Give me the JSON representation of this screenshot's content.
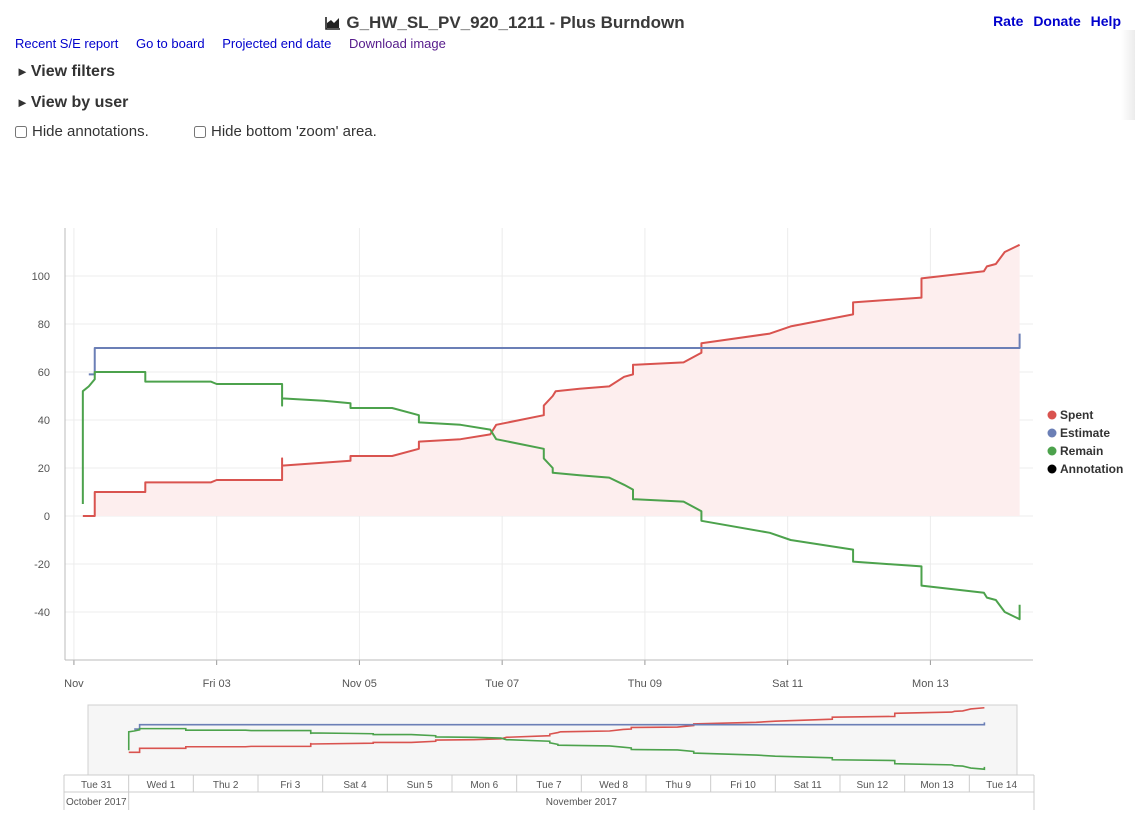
{
  "header": {
    "title": "G_HW_SL_PV_920_1211 - Plus Burndown",
    "chart_icon": "area-chart-icon"
  },
  "top_links": {
    "rate": "Rate",
    "donate": "Donate",
    "help": "Help"
  },
  "links": {
    "recent": "Recent S/E report",
    "board": "Go to board",
    "projected": "Projected end date",
    "download": "Download image"
  },
  "toggles": {
    "arrow": "►",
    "view_filters": "View filters",
    "view_by_user": "View by user"
  },
  "options": {
    "hide_annotations": "Hide annotations.",
    "hide_zoom": "Hide bottom 'zoom' area."
  },
  "colors": {
    "spent": "#d9534f",
    "estimate": "#6b7fb6",
    "remain": "#4ca24c",
    "annotation": "#000000",
    "spent_fill": "#fdeeee"
  },
  "chart_data": {
    "type": "line",
    "title": "",
    "xlabel": "",
    "ylabel": "",
    "ylim": [
      -60,
      120
    ],
    "xlim": [
      "2017-11-01T03:00",
      "2017-11-14T06:00"
    ],
    "y_ticks": [
      -40,
      -20,
      0,
      20,
      40,
      60,
      80,
      100
    ],
    "y_tick_labels": [
      "-40",
      "-20",
      "0",
      "20",
      "40",
      "60",
      "80",
      "100"
    ],
    "x_ticks": [
      "2017-11-01T00:00",
      "2017-11-03T00:00",
      "2017-11-05T00:00",
      "2017-11-07T00:00",
      "2017-11-09T00:00",
      "2017-11-11T00:00",
      "2017-11-13T00:00"
    ],
    "x_tick_labels": [
      "Nov",
      "Fri 03",
      "Nov 05",
      "Tue 07",
      "Thu 09",
      "Sat 11",
      "Mon 13"
    ],
    "legend": [
      "Spent",
      "Estimate",
      "Remain",
      "Annotation"
    ],
    "legend_position": "right",
    "grid": true,
    "series": [
      {
        "name": "Spent",
        "color": "#d9534f",
        "fill": true,
        "points": [
          [
            "2017-11-01T03:00",
            0
          ],
          [
            "2017-11-01T07:00",
            0
          ],
          [
            "2017-11-01T07:00",
            10
          ],
          [
            "2017-11-02T00:00",
            10
          ],
          [
            "2017-11-02T00:00",
            14
          ],
          [
            "2017-11-02T22:00",
            14
          ],
          [
            "2017-11-03T00:00",
            15
          ],
          [
            "2017-11-03T22:00",
            15
          ],
          [
            "2017-11-03T22:00",
            24
          ],
          [
            "2017-11-03T22:00",
            21
          ],
          [
            "2017-11-04T21:00",
            23
          ],
          [
            "2017-11-04T21:00",
            25
          ],
          [
            "2017-11-05T11:00",
            25
          ],
          [
            "2017-11-05T20:00",
            28
          ],
          [
            "2017-11-05T20:00",
            31
          ],
          [
            "2017-11-06T10:00",
            32
          ],
          [
            "2017-11-06T20:00",
            34
          ],
          [
            "2017-11-06T22:00",
            38
          ],
          [
            "2017-11-07T14:00",
            42
          ],
          [
            "2017-11-07T14:00",
            46
          ],
          [
            "2017-11-07T17:00",
            50
          ],
          [
            "2017-11-07T18:00",
            52
          ],
          [
            "2017-11-08T02:00",
            53
          ],
          [
            "2017-11-08T12:00",
            54
          ],
          [
            "2017-11-08T17:00",
            58
          ],
          [
            "2017-11-08T20:00",
            59
          ],
          [
            "2017-11-08T20:00",
            63
          ],
          [
            "2017-11-09T13:00",
            64
          ],
          [
            "2017-11-09T19:00",
            68
          ],
          [
            "2017-11-09T19:00",
            72
          ],
          [
            "2017-11-10T18:00",
            76
          ],
          [
            "2017-11-11T01:00",
            79
          ],
          [
            "2017-11-11T22:00",
            84
          ],
          [
            "2017-11-11T22:00",
            89
          ],
          [
            "2017-11-12T21:00",
            91
          ],
          [
            "2017-11-12T21:00",
            99
          ],
          [
            "2017-11-13T18:00",
            102
          ],
          [
            "2017-11-13T19:00",
            104
          ],
          [
            "2017-11-13T22:00",
            105
          ],
          [
            "2017-11-14T01:00",
            110
          ],
          [
            "2017-11-14T06:00",
            113
          ]
        ]
      },
      {
        "name": "Estimate",
        "color": "#6b7fb6",
        "fill": false,
        "points": [
          [
            "2017-11-01T05:00",
            59
          ],
          [
            "2017-11-01T07:00",
            59
          ],
          [
            "2017-11-01T07:00",
            70
          ],
          [
            "2017-11-14T06:00",
            70
          ],
          [
            "2017-11-14T06:00",
            76
          ]
        ]
      },
      {
        "name": "Remain",
        "color": "#4ca24c",
        "fill": false,
        "points": [
          [
            "2017-11-01T03:00",
            5
          ],
          [
            "2017-11-01T03:00",
            52
          ],
          [
            "2017-11-01T05:00",
            54
          ],
          [
            "2017-11-01T07:00",
            57
          ],
          [
            "2017-11-01T07:00",
            60
          ],
          [
            "2017-11-02T00:00",
            60
          ],
          [
            "2017-11-02T00:00",
            56
          ],
          [
            "2017-11-02T22:00",
            56
          ],
          [
            "2017-11-03T00:00",
            55
          ],
          [
            "2017-11-03T22:00",
            55
          ],
          [
            "2017-11-03T22:00",
            46
          ],
          [
            "2017-11-03T22:00",
            49
          ],
          [
            "2017-11-04T12:00",
            48
          ],
          [
            "2017-11-04T21:00",
            47
          ],
          [
            "2017-11-04T21:00",
            45
          ],
          [
            "2017-11-05T11:00",
            45
          ],
          [
            "2017-11-05T20:00",
            42
          ],
          [
            "2017-11-05T20:00",
            39
          ],
          [
            "2017-11-06T10:00",
            38
          ],
          [
            "2017-11-06T20:00",
            36
          ],
          [
            "2017-11-06T22:00",
            32
          ],
          [
            "2017-11-07T14:00",
            28
          ],
          [
            "2017-11-07T14:00",
            24
          ],
          [
            "2017-11-07T17:00",
            20
          ],
          [
            "2017-11-07T17:00",
            18
          ],
          [
            "2017-11-08T02:00",
            17
          ],
          [
            "2017-11-08T12:00",
            16
          ],
          [
            "2017-11-08T17:00",
            13
          ],
          [
            "2017-11-08T20:00",
            11
          ],
          [
            "2017-11-08T20:00",
            7
          ],
          [
            "2017-11-09T13:00",
            6
          ],
          [
            "2017-11-09T19:00",
            2
          ],
          [
            "2017-11-09T19:00",
            -2
          ],
          [
            "2017-11-10T18:00",
            -7
          ],
          [
            "2017-11-11T01:00",
            -10
          ],
          [
            "2017-11-11T22:00",
            -14
          ],
          [
            "2017-11-11T22:00",
            -19
          ],
          [
            "2017-11-12T21:00",
            -21
          ],
          [
            "2017-11-12T21:00",
            -29
          ],
          [
            "2017-11-13T18:00",
            -32
          ],
          [
            "2017-11-13T19:00",
            -34
          ],
          [
            "2017-11-13T22:00",
            -35
          ],
          [
            "2017-11-14T01:00",
            -40
          ],
          [
            "2017-11-14T06:00",
            -43
          ],
          [
            "2017-11-14T06:00",
            -37
          ]
        ]
      }
    ]
  },
  "timeline": {
    "days": [
      "Tue 31",
      "Wed 1",
      "Thu 2",
      "Fri 3",
      "Sat 4",
      "Sun 5",
      "Mon 6",
      "Tue 7",
      "Wed 8",
      "Thu 9",
      "Fri 10",
      "Sat 11",
      "Sun 12",
      "Mon 13",
      "Tue 14"
    ],
    "months": [
      "October 2017",
      "November 2017"
    ]
  }
}
